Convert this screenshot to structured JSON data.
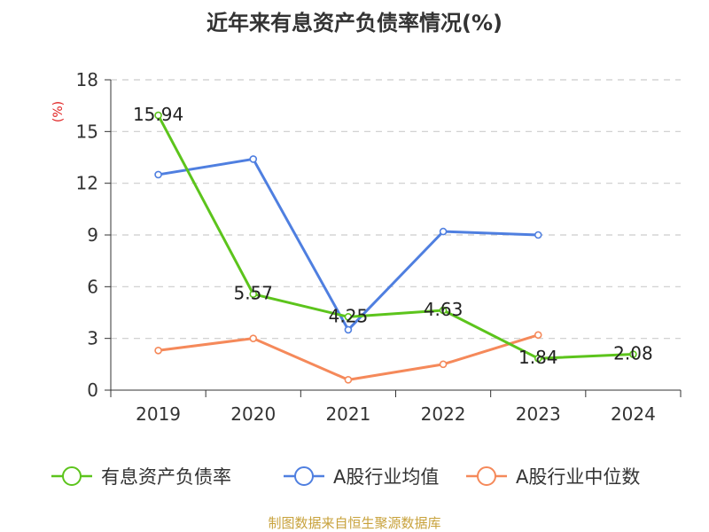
{
  "title": "近年来有息资产负债率情况(%)",
  "source": "制图数据来自恒生聚源数据库",
  "chart_data": {
    "type": "line",
    "title": "近年来有息资产负债率情况(%)",
    "ylabel": "(%)",
    "xlabel": "",
    "categories": [
      "2019",
      "2020",
      "2021",
      "2022",
      "2023",
      "2024"
    ],
    "ylim": [
      0,
      18
    ],
    "yticks": [
      0,
      3,
      6,
      9,
      12,
      15,
      18
    ],
    "grid": true,
    "legend_position": "bottom",
    "series": [
      {
        "name": "有息资产负债率",
        "color": "#5cc41c",
        "values": [
          15.94,
          5.57,
          4.25,
          4.63,
          1.84,
          2.08
        ],
        "labels": [
          "15.94",
          "5.57",
          "4.25",
          "4.63",
          "1.84",
          "2.08"
        ]
      },
      {
        "name": "A股行业均值",
        "color": "#4f7fe0",
        "values": [
          12.5,
          13.4,
          3.5,
          9.2,
          9.0,
          null
        ]
      },
      {
        "name": "A股行业中位数",
        "color": "#f5895a",
        "values": [
          2.3,
          3.0,
          0.6,
          1.5,
          3.2,
          null
        ]
      }
    ]
  }
}
